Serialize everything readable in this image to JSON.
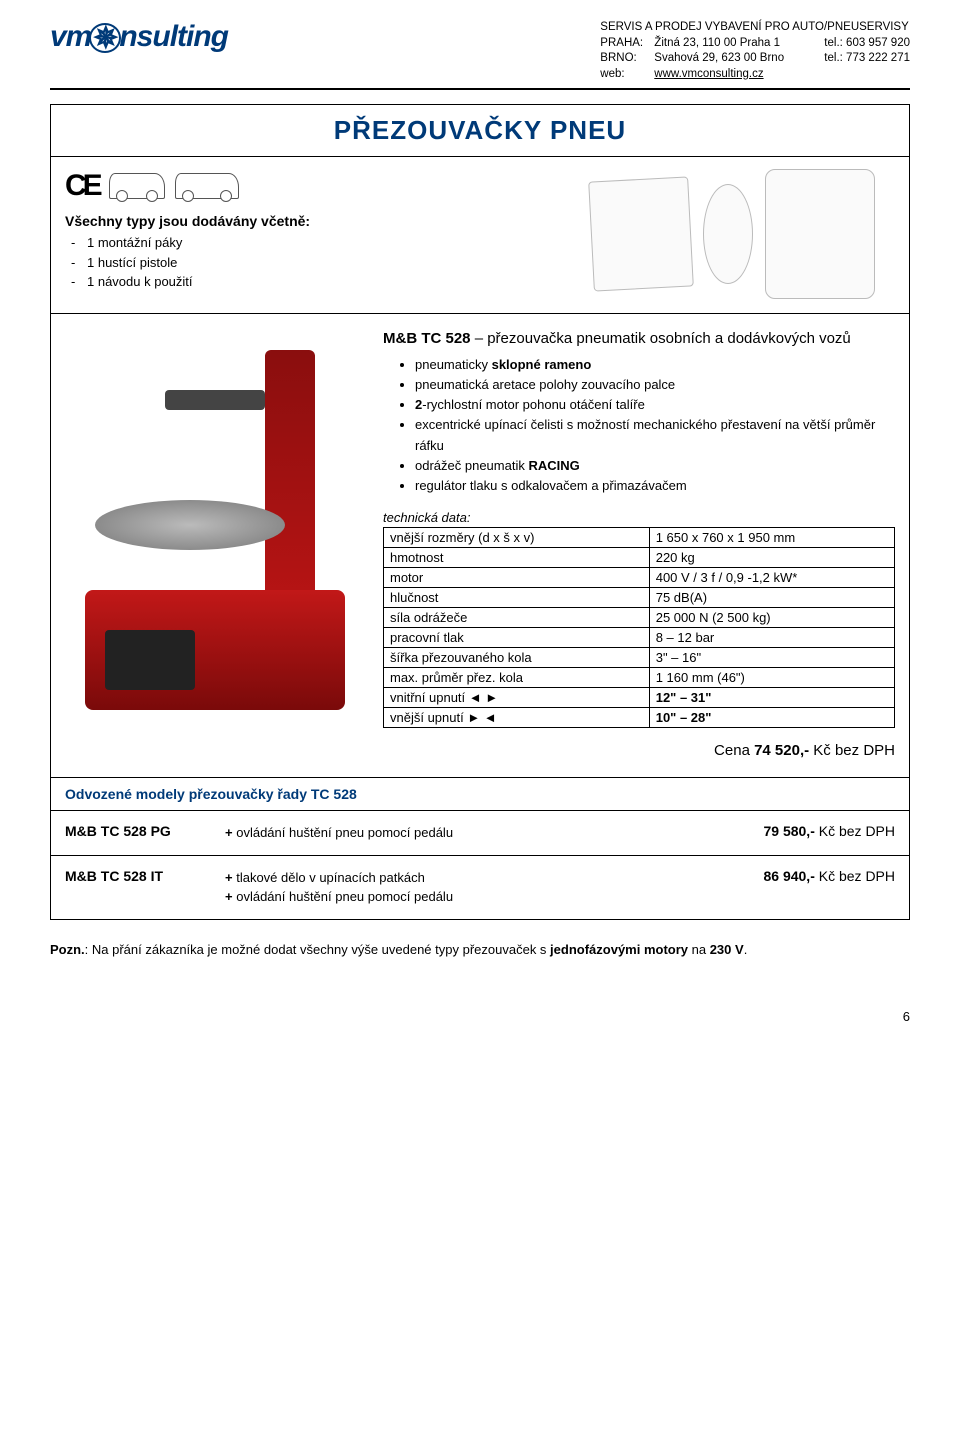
{
  "header": {
    "logo_text_pre": "vm",
    "logo_text_mid": "c",
    "logo_text_post": "nsulting",
    "tagline": "SERVIS A PRODEJ VYBAVENÍ PRO AUTO/PNEUSERVISY",
    "addr1_label": "PRAHA:",
    "addr1_value": "Žitná 23, 110 00 Praha 1",
    "addr1_tel_label": "tel.:",
    "addr1_tel": "603 957 920",
    "addr2_label": "BRNO:",
    "addr2_value": "Svahová 29, 623 00 Brno",
    "addr2_tel_label": "tel.:",
    "addr2_tel": "773 222 271",
    "web_label": "web:",
    "web_value": "www.vmconsulting.cz"
  },
  "title": "PŘEZOUVAČKY PNEU",
  "intro": {
    "heading": "Všechny typy jsou dodávány včetně:",
    "items": [
      "1 montážní páky",
      "1 hustící pistole",
      "1 návodu k použití"
    ]
  },
  "product": {
    "code": "M&B TC 528",
    "desc_suffix": " – přezouvačka pneumatik osobních a dodávkových vozů",
    "bullets": [
      {
        "pre": "pneumaticky ",
        "bold": "sklopné rameno",
        "post": ""
      },
      {
        "pre": "pneumatická aretace polohy zouvacího palce",
        "bold": "",
        "post": ""
      },
      {
        "pre": "",
        "bold": "2",
        "post": "-rychlostní motor pohonu otáčení talíře"
      },
      {
        "pre": "excentrické upínací čelisti s možností mechanického přestavení na větší průměr ráfku",
        "bold": "",
        "post": ""
      },
      {
        "pre": "odrážeč pneumatik ",
        "bold": "RACING",
        "post": ""
      },
      {
        "pre": "regulátor tlaku s odkalovačem a přimazávačem",
        "bold": "",
        "post": ""
      }
    ],
    "tech_label": "technická data:",
    "tech_rows": [
      {
        "k": "vnější rozměry   (d x š x v)",
        "v": "1 650 x 760 x 1 950 mm"
      },
      {
        "k": "hmotnost",
        "v": "220 kg"
      },
      {
        "k": "motor",
        "v": "400 V / 3 f / 0,9 -1,2 kW*"
      },
      {
        "k": "hlučnost",
        "v": "75 dB(A)"
      },
      {
        "k": "síla odrážeče",
        "v": "25 000 N (2 500 kg)"
      },
      {
        "k": "pracovní tlak",
        "v": "8 – 12 bar"
      },
      {
        "k": "šířka přezouvaného kola",
        "v": "3\" – 16\""
      },
      {
        "k": "max. průměr přez. kola",
        "v": "1 160 mm (46\")"
      },
      {
        "k": "vnitřní upnutí  ◄ ►",
        "v_bold": "12\" – 31\""
      },
      {
        "k": "vnější upnutí  ► ◄",
        "v_bold": "10\" – 28\""
      }
    ],
    "price_prefix": "Cena ",
    "price_value": "74 520,-",
    "price_suffix": " Kč bez DPH"
  },
  "derived_heading": "Odvozené modely přezouvačky řady TC 528",
  "models": [
    {
      "name": "M&B TC 528 PG",
      "lines": [
        "+ ovládání huštění pneu pomocí pedálu"
      ],
      "price_value": "79 580,-",
      "price_suffix": " Kč bez DPH"
    },
    {
      "name": "M&B TC 528 IT",
      "lines": [
        "+ tlakové dělo v upínacích patkách",
        "+ ovládání huštění pneu pomocí pedálu"
      ],
      "price_value": "86 940,-",
      "price_suffix": " Kč bez DPH"
    }
  ],
  "note": {
    "label": "Pozn.",
    "text_pre": ": Na přání zákazníka je možné dodat všechny výše uvedené typy přezouvaček s ",
    "bold1": "jednofázovými motory",
    "text_mid": " na ",
    "bold2": "230 V",
    "text_post": "."
  },
  "page_number": "6"
}
